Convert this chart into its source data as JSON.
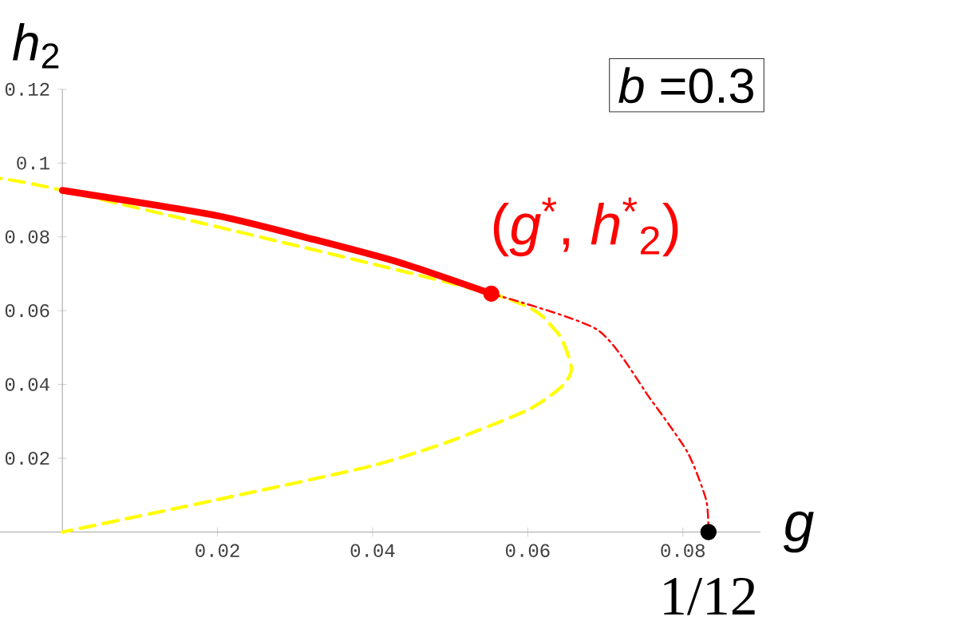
{
  "chart_data": {
    "type": "line",
    "xlabel": "g",
    "ylabel": "*h*$_{2}$",
    "xlim": [
      -0.01,
      0.09
    ],
    "ylim": [
      0,
      0.12
    ],
    "xticks": [
      0.02,
      0.04,
      0.06,
      0.08
    ],
    "yticks": [
      0.02,
      0.04,
      0.06,
      0.08,
      {
        "value": 0.1,
        "label": "0.1"
      },
      0.12
    ],
    "grid": false,
    "series": [
      {
        "color": "#ffff00",
        "line_style": "dashed",
        "x": [
          -0.0098,
          0,
          0.0198,
          0.0324,
          0.0437,
          0.0553,
          0.0635,
          0.0656,
          0.0645,
          0.0601,
          0.0498,
          0.0396,
          0.0198,
          0
        ],
        "values": [
          0.0962,
          0.0926,
          null,
          null,
          null,
          0.0646,
          0.0548,
          0.0447,
          0.0397,
          0.0332,
          0.0245,
          0.0178,
          0.0087,
          0
        ]
      },
      {
        "color": "#ff0000",
        "line_style": "solid",
        "x": [
          0,
          0.0198,
          0.0324,
          0.0437,
          0.0553
        ],
        "values": [
          0.0926,
          0.0858,
          0.0793,
          0.0729,
          0.0646
        ]
      },
      {
        "color": "#ff0000",
        "line_style": "dashdot",
        "x": [
          0.0553,
          0.069,
          0.0758,
          0.0806,
          0.083,
          0.0833
        ],
        "values": [
          0.0646,
          0.0548,
          0.0361,
          0.0216,
          0.0087,
          0
        ]
      },
      {
        "type": "scatter",
        "marker": "circle",
        "color": "#ff0000",
        "x": [
          0.0553
        ],
        "values": [
          0.0646
        ]
      },
      {
        "type": "scatter",
        "marker": "circle",
        "color": "#000000",
        "x": [
          0.0833
        ],
        "values": [
          0
        ]
      }
    ],
    "annotations": [
      "*b* =0.3",
      {
        "text": "(*g*$^{*}$, *h*$^{*}$$_{2}$)",
        "x": 0.0553,
        "y": 0.0646
      },
      {
        "text": "1/12",
        "x": 0.0833,
        "y": 0
      }
    ]
  }
}
